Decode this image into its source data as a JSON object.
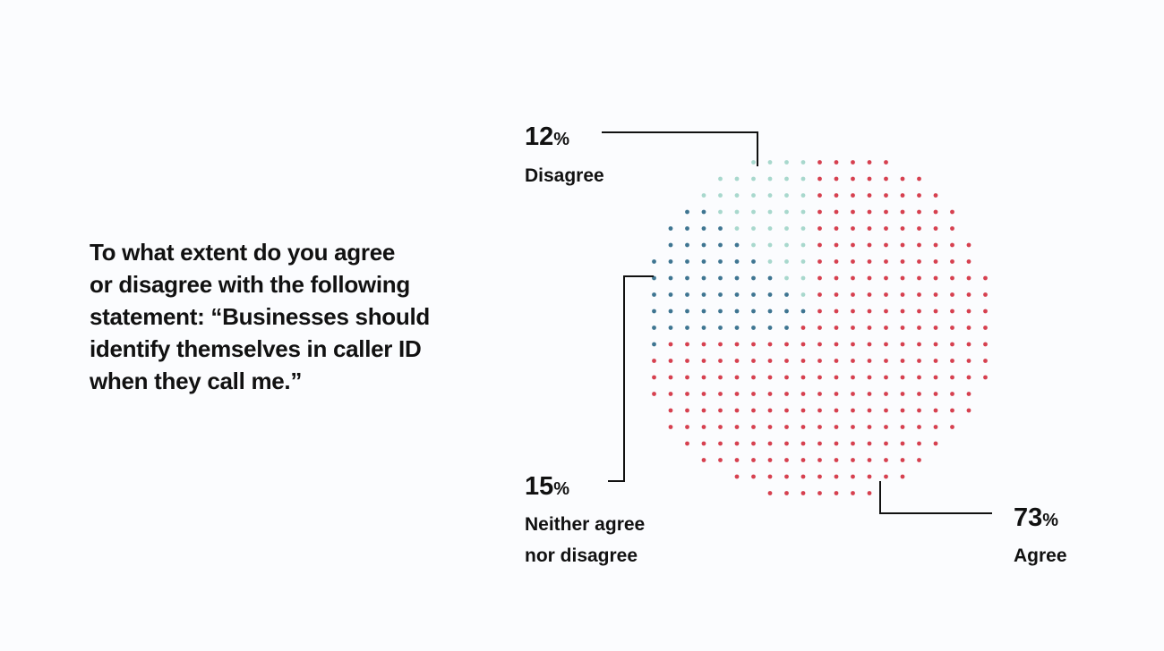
{
  "question": {
    "lines": [
      "To what extent do you agree",
      "or disagree with the following",
      "statement: “Businesses should",
      "identify themselves in caller ID",
      "when they call me.”"
    ]
  },
  "chart_data": {
    "type": "pie",
    "style": "dot-pie",
    "series": [
      {
        "name": "Agree",
        "value": 73,
        "pct_text": "73",
        "label_lines": [
          "Agree"
        ],
        "color": "#d6404f"
      },
      {
        "name": "Neither agree nor disagree",
        "value": 15,
        "pct_text": "15",
        "label_lines": [
          "Neither agree",
          "nor disagree"
        ],
        "color": "#3e7591"
      },
      {
        "name": "Disagree",
        "value": 12,
        "pct_text": "12",
        "label_lines": [
          "Disagree"
        ],
        "color": "#a8d8cd"
      }
    ],
    "percent_symbol": "%"
  }
}
